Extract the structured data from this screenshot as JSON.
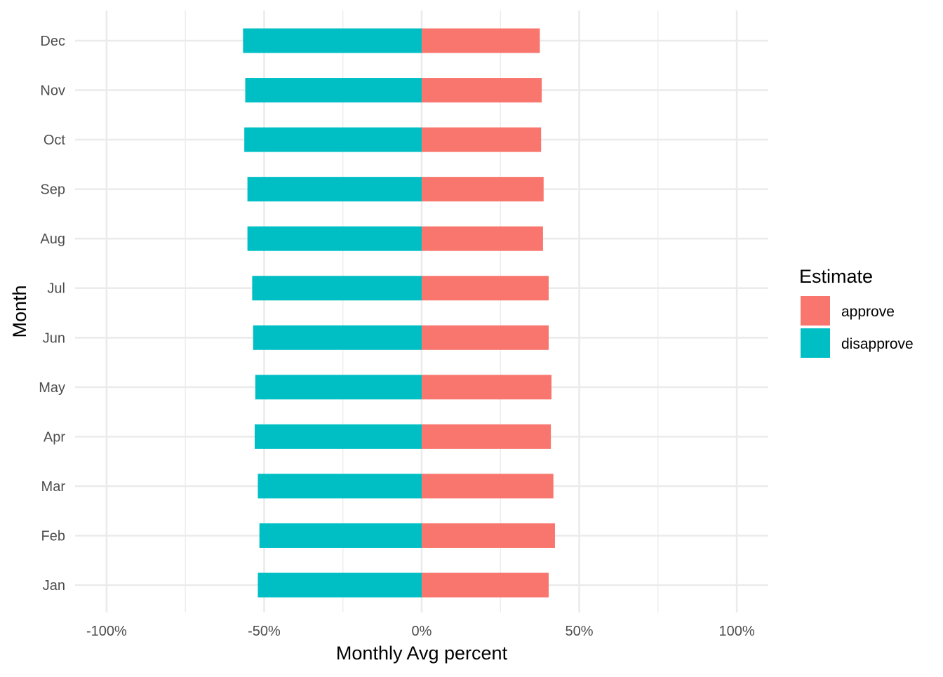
{
  "chart_data": {
    "type": "bar",
    "orientation": "horizontal",
    "stacked": "diverging",
    "categories": [
      "Jan",
      "Feb",
      "Mar",
      "Apr",
      "May",
      "Jun",
      "Jul",
      "Aug",
      "Sep",
      "Oct",
      "Nov",
      "Dec"
    ],
    "series": [
      {
        "name": "approve",
        "color": "#F8766D",
        "values": [
          40.3,
          42.3,
          41.8,
          41.0,
          41.2,
          40.3,
          40.3,
          38.5,
          38.7,
          37.9,
          38.1,
          37.5
        ]
      },
      {
        "name": "disapprove",
        "color": "#00BFC4",
        "values": [
          -52.0,
          -51.5,
          -52.0,
          -53.0,
          -52.8,
          -53.5,
          -53.8,
          -55.3,
          -55.3,
          -56.3,
          -56.0,
          -56.7
        ]
      }
    ],
    "xlabel": "Monthly Avg percent",
    "ylabel": "Month",
    "xlim": [
      -110,
      110
    ],
    "xticks": [
      -100,
      -50,
      0,
      50,
      100
    ],
    "xtick_labels": [
      "-100%",
      "-50%",
      "0%",
      "50%",
      "100%"
    ],
    "legend": {
      "title": "Estimate",
      "position": "right",
      "entries": [
        "approve",
        "disapprove"
      ]
    },
    "grid": true,
    "theme": "minimal"
  }
}
